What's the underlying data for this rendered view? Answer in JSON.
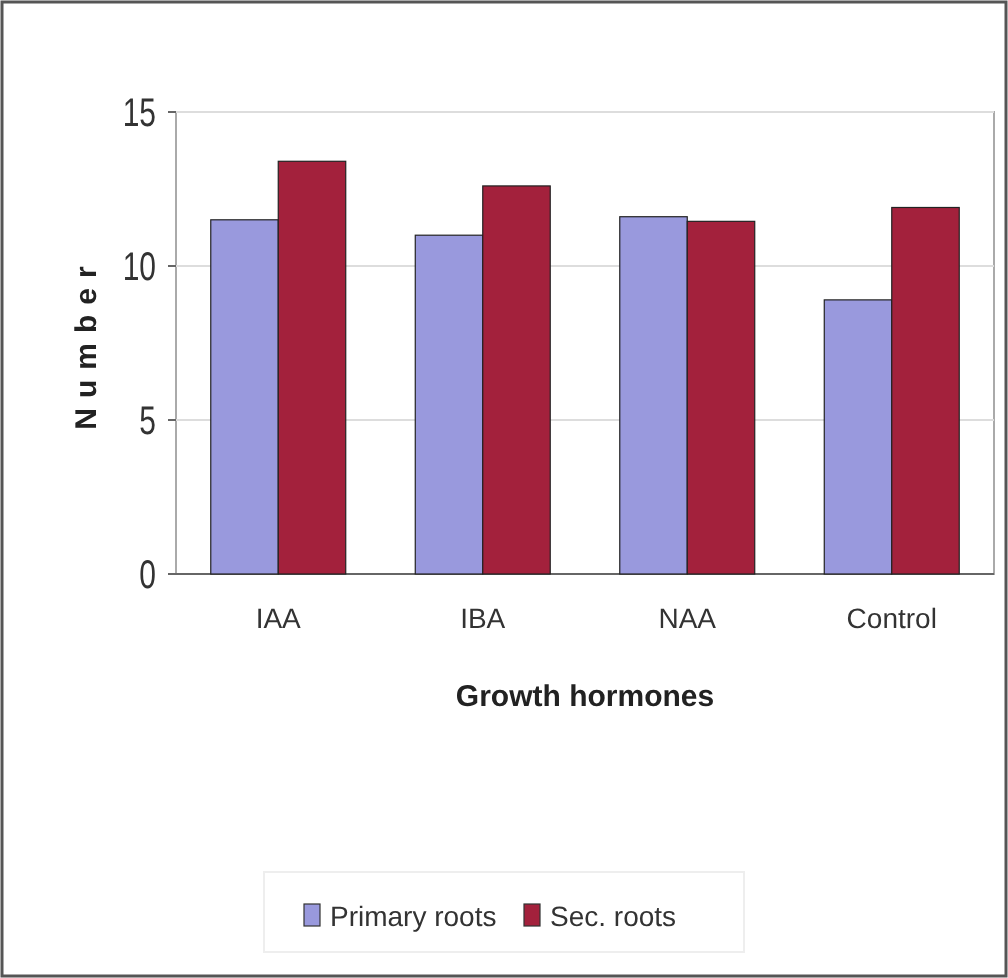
{
  "chart_data": {
    "type": "bar",
    "xlabel": "Growth hormones",
    "ylabel": "Number",
    "categories": [
      "IAA",
      "IBA",
      "NAA",
      "Control"
    ],
    "series": [
      {
        "name": "Primary roots",
        "color": "#9999dd",
        "values": [
          11.5,
          11.0,
          11.6,
          8.9
        ]
      },
      {
        "name": "Sec. roots",
        "color": "#a3213c",
        "values": [
          13.4,
          12.6,
          11.45,
          11.9
        ]
      }
    ],
    "ylim": [
      0,
      15
    ],
    "yticks": [
      0,
      5,
      10,
      15
    ],
    "grid": "y",
    "legend": "bottom"
  }
}
